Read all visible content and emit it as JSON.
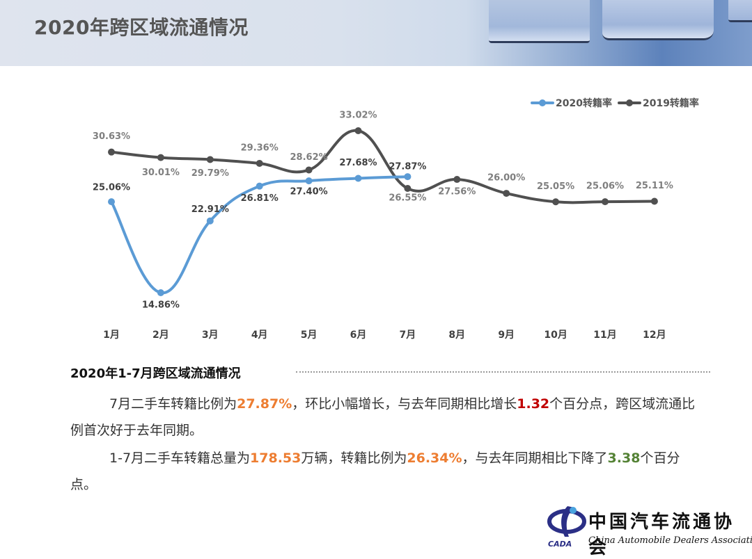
{
  "header": {
    "title": "2020年跨区域流通情况"
  },
  "legend": [
    {
      "label": "2020转籍率",
      "color": "#5b9bd5"
    },
    {
      "label": "2019转籍率",
      "color": "#505050"
    }
  ],
  "chart_data": {
    "type": "line",
    "title": "",
    "xlabel": "",
    "ylabel": "",
    "categories": [
      "1月",
      "2月",
      "3月",
      "4月",
      "5月",
      "6月",
      "7月",
      "8月",
      "9月",
      "10月",
      "11月",
      "12月"
    ],
    "series": [
      {
        "name": "2020转籍率",
        "color": "#5b9bd5",
        "values": [
          25.06,
          14.86,
          22.91,
          26.81,
          27.4,
          27.68,
          27.87,
          null,
          null,
          null,
          null,
          null
        ],
        "labels": [
          "25.06%",
          "14.86%",
          "22.91%",
          "26.81%",
          "27.40%",
          "27.68%",
          "27.87%"
        ]
      },
      {
        "name": "2019转籍率",
        "color": "#505050",
        "values": [
          30.63,
          30.01,
          29.79,
          29.36,
          28.62,
          33.02,
          26.55,
          27.56,
          26.0,
          25.05,
          25.06,
          25.11
        ],
        "labels": [
          "30.63%",
          "30.01%",
          "29.79%",
          "29.36%",
          "28.62%",
          "33.02%",
          "26.55%",
          "27.56%",
          "26.00%",
          "25.05%",
          "25.06%",
          "25.11%"
        ]
      }
    ],
    "smooth": true,
    "grid": false,
    "yaxis_visible": false,
    "legend_position": "top-right"
  },
  "summary": {
    "title": "2020年1-7月跨区域流通情况",
    "p1": {
      "t1": "7月二手车转籍比例为",
      "v1": "27.87%",
      "t2": "，环比小幅增长，与去年同期相比增长",
      "v2": "1.32",
      "t3": "个百分点，跨区域流通比例首次好于去年同期。"
    },
    "p2": {
      "t1": "1-7月二手车转籍总量为",
      "v1": "178.53",
      "t2": "万辆，转籍比例为",
      "v2": "26.34%",
      "t3": "，与去年同期相比下降了",
      "v3": "3.38",
      "t4": "个百分点。"
    }
  },
  "logo": {
    "cn": "中国汽车流通协会",
    "en": "China Automobile Dealers Association",
    "abbr": "CADA"
  }
}
